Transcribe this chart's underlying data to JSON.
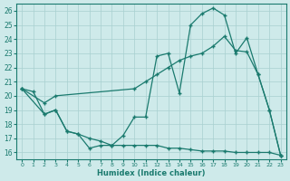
{
  "xlabel": "Humidex (Indice chaleur)",
  "bg_color": "#ceeaea",
  "line_color": "#1a7a6e",
  "xlim": [
    -0.5,
    23.5
  ],
  "ylim": [
    15.5,
    26.5
  ],
  "yticks": [
    16,
    17,
    18,
    19,
    20,
    21,
    22,
    23,
    24,
    25,
    26
  ],
  "xticks": [
    0,
    1,
    2,
    3,
    4,
    5,
    6,
    7,
    8,
    9,
    10,
    11,
    12,
    13,
    14,
    15,
    16,
    17,
    18,
    19,
    20,
    21,
    22,
    23
  ],
  "series1_x": [
    0,
    1,
    2,
    3,
    4,
    5,
    6,
    7,
    8,
    9,
    10,
    11,
    12,
    13,
    14,
    15,
    16,
    17,
    18,
    19,
    20,
    21,
    22,
    23
  ],
  "series1_y": [
    20.5,
    20.3,
    18.7,
    19.0,
    17.5,
    17.3,
    16.3,
    16.5,
    16.5,
    17.2,
    18.5,
    18.5,
    22.8,
    23.0,
    20.2,
    25.0,
    25.8,
    26.2,
    25.7,
    23.0,
    24.1,
    21.5,
    19.0,
    15.8
  ],
  "series2_x": [
    0,
    2,
    3,
    10,
    11,
    12,
    13,
    14,
    15,
    16,
    17,
    18,
    19,
    20,
    21,
    22,
    23
  ],
  "series2_y": [
    20.5,
    19.5,
    20.0,
    20.5,
    21.0,
    21.5,
    22.0,
    22.5,
    22.8,
    23.0,
    23.5,
    24.2,
    23.2,
    23.1,
    21.5,
    19.0,
    15.8
  ],
  "series3_x": [
    0,
    2,
    3,
    4,
    5,
    6,
    7,
    8,
    9,
    10,
    11,
    12,
    13,
    14,
    15,
    16,
    17,
    18,
    19,
    20,
    21,
    22,
    23
  ],
  "series3_y": [
    20.5,
    18.7,
    19.0,
    17.5,
    17.3,
    17.0,
    16.8,
    16.5,
    16.5,
    16.5,
    16.5,
    16.5,
    16.3,
    16.3,
    16.2,
    16.1,
    16.1,
    16.1,
    16.0,
    16.0,
    16.0,
    16.0,
    15.8
  ]
}
